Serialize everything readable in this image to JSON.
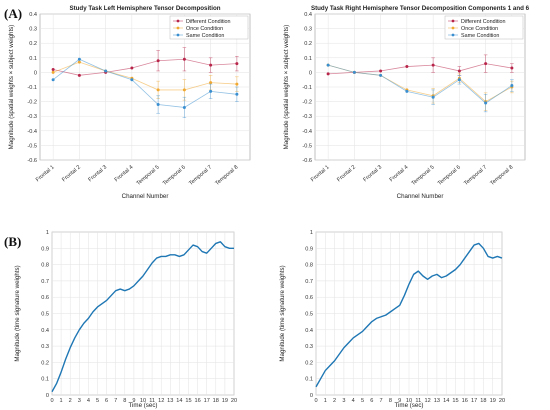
{
  "figure": {
    "label_a": "(A)",
    "label_b": "(B)"
  },
  "chart_data": [
    {
      "type": "line",
      "title": "Study Task Left Hemisphere Tensor Decomposition",
      "xlabel": "Channel Number",
      "ylabel": "Magnitude (spatial weights × subject weights)",
      "categories": [
        "Frontal 1",
        "Frontal 2",
        "Frontal 3",
        "Frontal 4",
        "Temporal 5",
        "Temporal 6",
        "Temporal 7",
        "Temporal 8"
      ],
      "ylim": [
        -0.6,
        0.4
      ],
      "yticks": [
        0.4,
        0.3,
        0.2,
        0.1,
        0,
        -0.1,
        -0.2,
        -0.3,
        -0.4,
        -0.5,
        -0.6
      ],
      "grid": true,
      "legend_position": "top-right",
      "series": [
        {
          "name": "Different Condition",
          "color": "#b8254a",
          "values": [
            0.02,
            -0.02,
            0.0,
            0.03,
            0.08,
            0.09,
            0.05,
            0.06
          ],
          "errors": [
            0.0,
            0.0,
            0.0,
            0.0,
            0.07,
            0.08,
            0.05,
            0.05
          ]
        },
        {
          "name": "Once Condition",
          "color": "#f0a830",
          "values": [
            0.0,
            0.07,
            0.01,
            -0.04,
            -0.12,
            -0.12,
            -0.07,
            -0.08
          ],
          "errors": [
            0.0,
            0.0,
            0.0,
            0.0,
            0.06,
            0.07,
            0.05,
            0.05
          ]
        },
        {
          "name": "Same Condition",
          "color": "#3a8fd0",
          "values": [
            -0.05,
            0.09,
            0.01,
            -0.05,
            -0.22,
            -0.24,
            -0.13,
            -0.15
          ],
          "errors": [
            0.0,
            0.0,
            0.0,
            0.0,
            0.06,
            0.07,
            0.05,
            0.05
          ]
        }
      ]
    },
    {
      "type": "line",
      "title": "Study Task Right Hemisphere Tensor Decomposition Components 1 and 6",
      "xlabel": "Channel Number",
      "ylabel": "Magnitude (spatial weights × subject weights)",
      "categories": [
        "Frontal 1",
        "Frontal 2",
        "Frontal 3",
        "Frontal 4",
        "Temporal 5",
        "Temporal 6",
        "Temporal 7",
        "Temporal 8"
      ],
      "ylim": [
        -0.6,
        0.4
      ],
      "yticks": [
        0.4,
        0.3,
        0.2,
        0.1,
        0,
        -0.1,
        -0.2,
        -0.3,
        -0.4,
        -0.5,
        -0.6
      ],
      "grid": true,
      "legend_position": "top-right",
      "series": [
        {
          "name": "Different Condition",
          "color": "#b8254a",
          "values": [
            -0.01,
            0.0,
            0.01,
            0.04,
            0.05,
            0.01,
            0.06,
            0.03
          ],
          "errors": [
            0.0,
            0.0,
            0.0,
            0.0,
            0.05,
            0.03,
            0.06,
            0.03
          ]
        },
        {
          "name": "Once Condition",
          "color": "#f0a830",
          "values": [
            0.05,
            0.0,
            -0.02,
            -0.12,
            -0.16,
            -0.04,
            -0.2,
            -0.1
          ],
          "errors": [
            0.0,
            0.0,
            0.0,
            0.0,
            0.05,
            0.03,
            0.06,
            0.04
          ]
        },
        {
          "name": "Same Condition",
          "color": "#3a8fd0",
          "values": [
            0.05,
            0.0,
            -0.02,
            -0.13,
            -0.17,
            -0.05,
            -0.21,
            -0.09
          ],
          "errors": [
            0.0,
            0.0,
            0.0,
            0.0,
            0.05,
            0.03,
            0.06,
            0.04
          ]
        }
      ]
    },
    {
      "type": "line",
      "title": "",
      "xlabel": "Time (sec)",
      "ylabel": "Magnitude (time signature weights)",
      "xlim": [
        0,
        20
      ],
      "ylim": [
        0,
        1
      ],
      "xticks": [
        0,
        1,
        2,
        3,
        4,
        5,
        6,
        7,
        8,
        9,
        10,
        11,
        12,
        13,
        14,
        15,
        16,
        17,
        18,
        19,
        20
      ],
      "yticks": [
        0,
        0.1,
        0.2,
        0.3,
        0.4,
        0.5,
        0.6,
        0.7,
        0.8,
        0.9,
        1
      ],
      "grid": true,
      "series": [
        {
          "color": "#1f77b4",
          "x": [
            0,
            0.5,
            1,
            1.5,
            2,
            2.5,
            3,
            3.5,
            4,
            4.5,
            5,
            5.5,
            6,
            6.5,
            7,
            7.5,
            8,
            8.5,
            9,
            9.5,
            10,
            10.5,
            11,
            11.5,
            12,
            12.5,
            13,
            13.5,
            14,
            14.5,
            15,
            15.5,
            16,
            16.5,
            17,
            17.5,
            18,
            18.5,
            19,
            19.5,
            20
          ],
          "y": [
            0.02,
            0.07,
            0.14,
            0.22,
            0.29,
            0.35,
            0.4,
            0.44,
            0.47,
            0.51,
            0.54,
            0.56,
            0.58,
            0.61,
            0.64,
            0.65,
            0.64,
            0.65,
            0.67,
            0.7,
            0.73,
            0.77,
            0.81,
            0.84,
            0.85,
            0.85,
            0.86,
            0.86,
            0.85,
            0.86,
            0.89,
            0.92,
            0.91,
            0.88,
            0.87,
            0.9,
            0.93,
            0.94,
            0.91,
            0.9,
            0.9
          ]
        }
      ]
    },
    {
      "type": "line",
      "title": "",
      "xlabel": "Time (sec)",
      "ylabel": "Magnitude (time signature weights)",
      "xlim": [
        0,
        20
      ],
      "ylim": [
        0,
        1
      ],
      "xticks": [
        0,
        1,
        2,
        3,
        4,
        5,
        6,
        7,
        8,
        9,
        10,
        11,
        12,
        13,
        14,
        15,
        16,
        17,
        18,
        19,
        20
      ],
      "yticks": [
        0,
        0.1,
        0.2,
        0.3,
        0.4,
        0.5,
        0.6,
        0.7,
        0.8,
        0.9,
        1
      ],
      "grid": true,
      "series": [
        {
          "color": "#1f77b4",
          "x": [
            0,
            0.5,
            1,
            1.5,
            2,
            2.5,
            3,
            3.5,
            4,
            4.5,
            5,
            5.5,
            6,
            6.5,
            7,
            7.5,
            8,
            8.5,
            9,
            9.5,
            10,
            10.5,
            11,
            11.5,
            12,
            12.5,
            13,
            13.5,
            14,
            14.5,
            15,
            15.5,
            16,
            16.5,
            17,
            17.5,
            18,
            18.5,
            19,
            19.5,
            20
          ],
          "y": [
            0.05,
            0.1,
            0.15,
            0.18,
            0.21,
            0.25,
            0.29,
            0.32,
            0.35,
            0.37,
            0.39,
            0.42,
            0.45,
            0.47,
            0.48,
            0.49,
            0.51,
            0.53,
            0.55,
            0.61,
            0.68,
            0.74,
            0.76,
            0.73,
            0.71,
            0.73,
            0.74,
            0.72,
            0.73,
            0.75,
            0.77,
            0.8,
            0.84,
            0.88,
            0.92,
            0.93,
            0.9,
            0.85,
            0.84,
            0.85,
            0.84
          ]
        }
      ]
    }
  ]
}
